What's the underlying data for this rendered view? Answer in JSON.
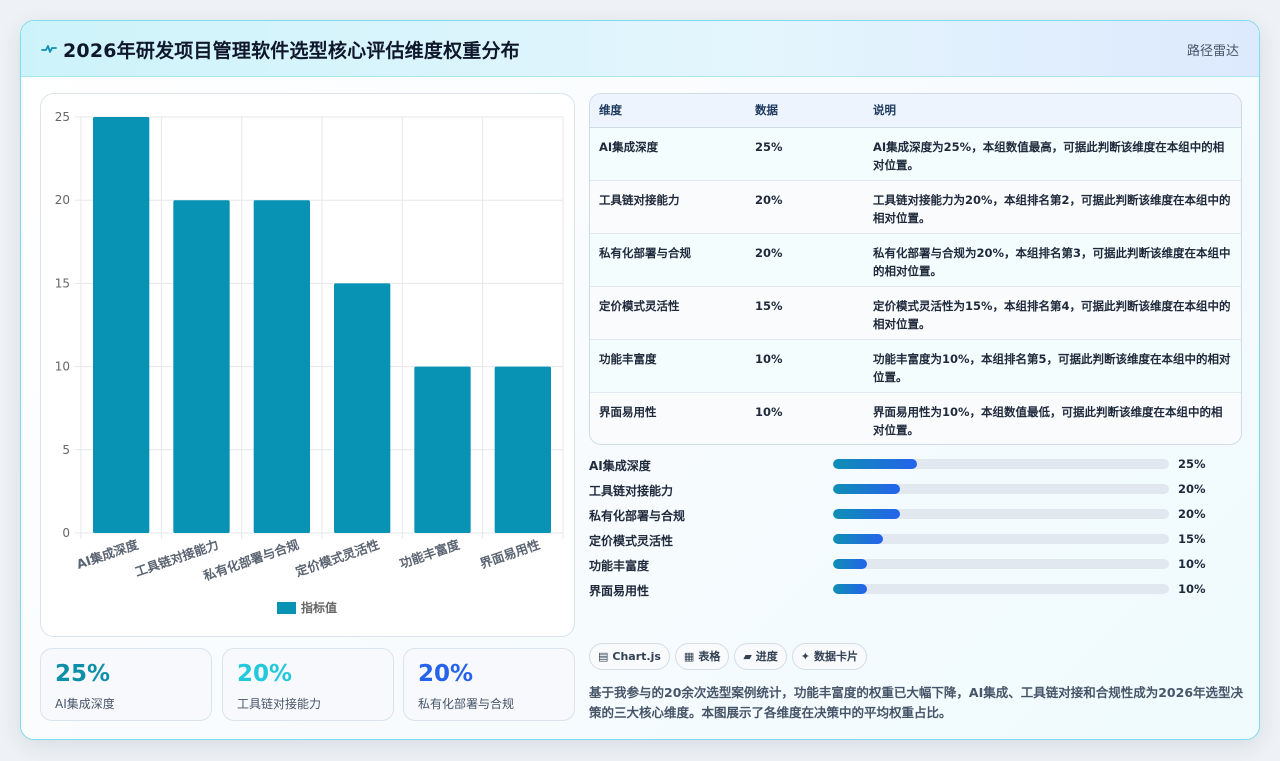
{
  "header": {
    "title": "2026年研发项目管理软件选型核心评估维度权重分布",
    "tag": "路径雷达"
  },
  "colors": {
    "bar": "#0892b4",
    "stat1": "#0e8fa8",
    "stat2": "#22c9dc",
    "stat3": "#2563eb"
  },
  "chart_data": {
    "type": "bar",
    "categories": [
      "AI集成深度",
      "工具链对接能力",
      "私有化部署与合规",
      "定价模式灵活性",
      "功能丰富度",
      "界面易用性"
    ],
    "series": [
      {
        "name": "指标值",
        "values": [
          25,
          20,
          20,
          15,
          10,
          10
        ]
      }
    ],
    "ylim": [
      0,
      25
    ],
    "yticks": [
      0,
      5,
      10,
      15,
      20,
      25
    ],
    "grid": true,
    "legend": "bottom"
  },
  "stats": [
    {
      "value": "25%",
      "label": "AI集成深度"
    },
    {
      "value": "20%",
      "label": "工具链对接能力"
    },
    {
      "value": "20%",
      "label": "私有化部署与合规"
    }
  ],
  "table": {
    "headers": [
      "维度",
      "数据",
      "说明"
    ],
    "rows": [
      {
        "dim": "AI集成深度",
        "data": "25%",
        "note": "AI集成深度为25%，本组数值最高，可据此判断该维度在本组中的相对位置。"
      },
      {
        "dim": "工具链对接能力",
        "data": "20%",
        "note": "工具链对接能力为20%，本组排名第2，可据此判断该维度在本组中的相对位置。"
      },
      {
        "dim": "私有化部署与合规",
        "data": "20%",
        "note": "私有化部署与合规为20%，本组排名第3，可据此判断该维度在本组中的相对位置。"
      },
      {
        "dim": "定价模式灵活性",
        "data": "15%",
        "note": "定价模式灵活性为15%，本组排名第4，可据此判断该维度在本组中的相对位置。"
      },
      {
        "dim": "功能丰富度",
        "data": "10%",
        "note": "功能丰富度为10%，本组排名第5，可据此判断该维度在本组中的相对位置。"
      },
      {
        "dim": "界面易用性",
        "data": "10%",
        "note": "界面易用性为10%，本组数值最低，可据此判断该维度在本组中的相对位置。"
      }
    ]
  },
  "progress": [
    {
      "label": "AI集成深度",
      "value": 25,
      "text": "25%"
    },
    {
      "label": "工具链对接能力",
      "value": 20,
      "text": "20%"
    },
    {
      "label": "私有化部署与合规",
      "value": 20,
      "text": "20%"
    },
    {
      "label": "定价模式灵活性",
      "value": 15,
      "text": "15%"
    },
    {
      "label": "功能丰富度",
      "value": 10,
      "text": "10%"
    },
    {
      "label": "界面易用性",
      "value": 10,
      "text": "10%"
    }
  ],
  "chips": [
    {
      "icon": "▤",
      "label": "Chart.js"
    },
    {
      "icon": "▦",
      "label": "表格"
    },
    {
      "icon": "▰",
      "label": "进度"
    },
    {
      "icon": "✦",
      "label": "数据卡片"
    }
  ],
  "description": "基于我参与的20余次选型案例统计，功能丰富度的权重已大幅下降，AI集成、工具链对接和合规性成为2026年选型决策的三大核心维度。本图展示了各维度在决策中的平均权重占比。"
}
